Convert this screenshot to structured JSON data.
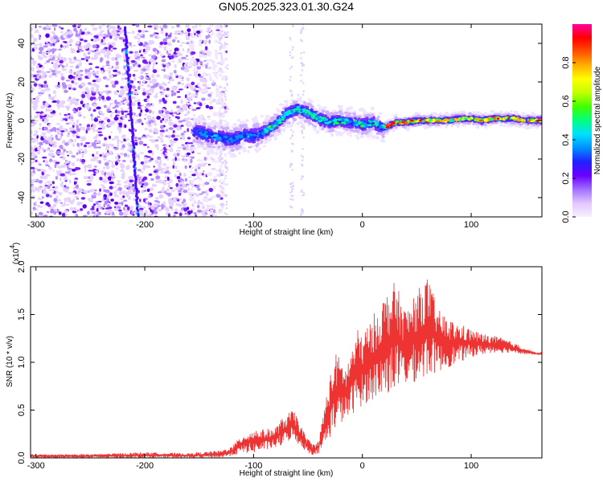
{
  "title": "GN05.2025.323.01.30.G24",
  "chart_data": [
    {
      "type": "heatmap",
      "xlabel": "Height of straight line (km)",
      "ylabel": "Frequency (Hz)",
      "xlim": [
        -305,
        165
      ],
      "ylim": [
        -50,
        50
      ],
      "xticks": [
        -300,
        -200,
        -100,
        0,
        100
      ],
      "yticks": [
        -40,
        -20,
        0,
        20,
        40
      ],
      "colorbar": {
        "label": "Normalized spectral amplitude",
        "range": [
          0,
          1
        ],
        "ticks": [
          "0.0",
          "0.2",
          "0.4",
          "0.6",
          "0.8"
        ],
        "colors": [
          "#f8f0ff",
          "#e2c6ff",
          "#a070ff",
          "#6a00ff",
          "#2020ff",
          "#0090ff",
          "#00e0ff",
          "#00ff80",
          "#40ff00",
          "#c0ff00",
          "#ffff00",
          "#ffb000",
          "#ff5000",
          "#ff0000",
          "#ff00a0"
        ]
      },
      "ridge": {
        "x": [
          -150,
          -140,
          -130,
          -120,
          -110,
          -100,
          -90,
          -80,
          -70,
          -60,
          -50,
          -40,
          -30,
          -20,
          -10,
          0,
          10,
          20,
          30,
          40,
          50,
          60,
          70,
          80,
          90,
          100,
          110,
          120,
          130,
          140,
          150,
          160
        ],
        "y": [
          -6,
          -8,
          -9,
          -10,
          -8,
          -8,
          -6,
          -2,
          3,
          6,
          4,
          1,
          -1,
          0,
          -1,
          -2,
          -1,
          -4,
          -1,
          -1,
          0,
          0,
          0,
          0,
          1,
          1,
          0,
          1,
          1,
          1,
          0,
          0
        ]
      },
      "streak": {
        "x": [
          -218,
          -206
        ],
        "y": [
          48,
          -50
        ]
      }
    },
    {
      "type": "line",
      "xlabel": "Height of straight line (km)",
      "ylabel": "SNR (10 * v/v)",
      "y_multiplier": "(x10",
      "y_multiplier_exp": "4",
      "xlim": [
        -305,
        165
      ],
      "ylim": [
        0,
        2.0
      ],
      "xticks": [
        -300,
        -200,
        -100,
        0,
        100
      ],
      "yticks": [
        "0.0",
        "0.5",
        "1.0",
        "1.5",
        "2.0"
      ],
      "color": "#ee3333",
      "envelope": {
        "x": [
          -305,
          -250,
          -200,
          -160,
          -130,
          -120,
          -110,
          -100,
          -90,
          -80,
          -75,
          -70,
          -65,
          -60,
          -55,
          -50,
          -45,
          -40,
          -35,
          -30,
          -25,
          -20,
          -15,
          -10,
          -5,
          0,
          10,
          20,
          30,
          40,
          50,
          60,
          70,
          80,
          90,
          100,
          110,
          120,
          130,
          140,
          150,
          160,
          165
        ],
        "upper": [
          0.04,
          0.04,
          0.06,
          0.05,
          0.08,
          0.12,
          0.25,
          0.3,
          0.3,
          0.32,
          0.4,
          0.45,
          0.5,
          0.45,
          0.3,
          0.2,
          0.15,
          0.18,
          0.55,
          0.85,
          1.1,
          1.05,
          0.95,
          1.15,
          1.35,
          1.3,
          1.5,
          1.7,
          1.85,
          1.55,
          1.75,
          1.9,
          1.55,
          1.45,
          1.4,
          1.35,
          1.3,
          1.28,
          1.25,
          1.2,
          1.15,
          1.1,
          1.1
        ],
        "lower": [
          0.0,
          0.0,
          0.0,
          0.0,
          0.0,
          0.02,
          0.05,
          0.05,
          0.08,
          0.1,
          0.12,
          0.15,
          0.2,
          0.15,
          0.1,
          0.05,
          0.03,
          0.05,
          0.1,
          0.2,
          0.3,
          0.35,
          0.4,
          0.45,
          0.5,
          0.55,
          0.6,
          0.65,
          0.7,
          0.75,
          0.8,
          0.85,
          0.9,
          0.95,
          1.0,
          1.05,
          1.08,
          1.1,
          1.1,
          1.1,
          1.08,
          1.08,
          1.08
        ]
      }
    }
  ]
}
